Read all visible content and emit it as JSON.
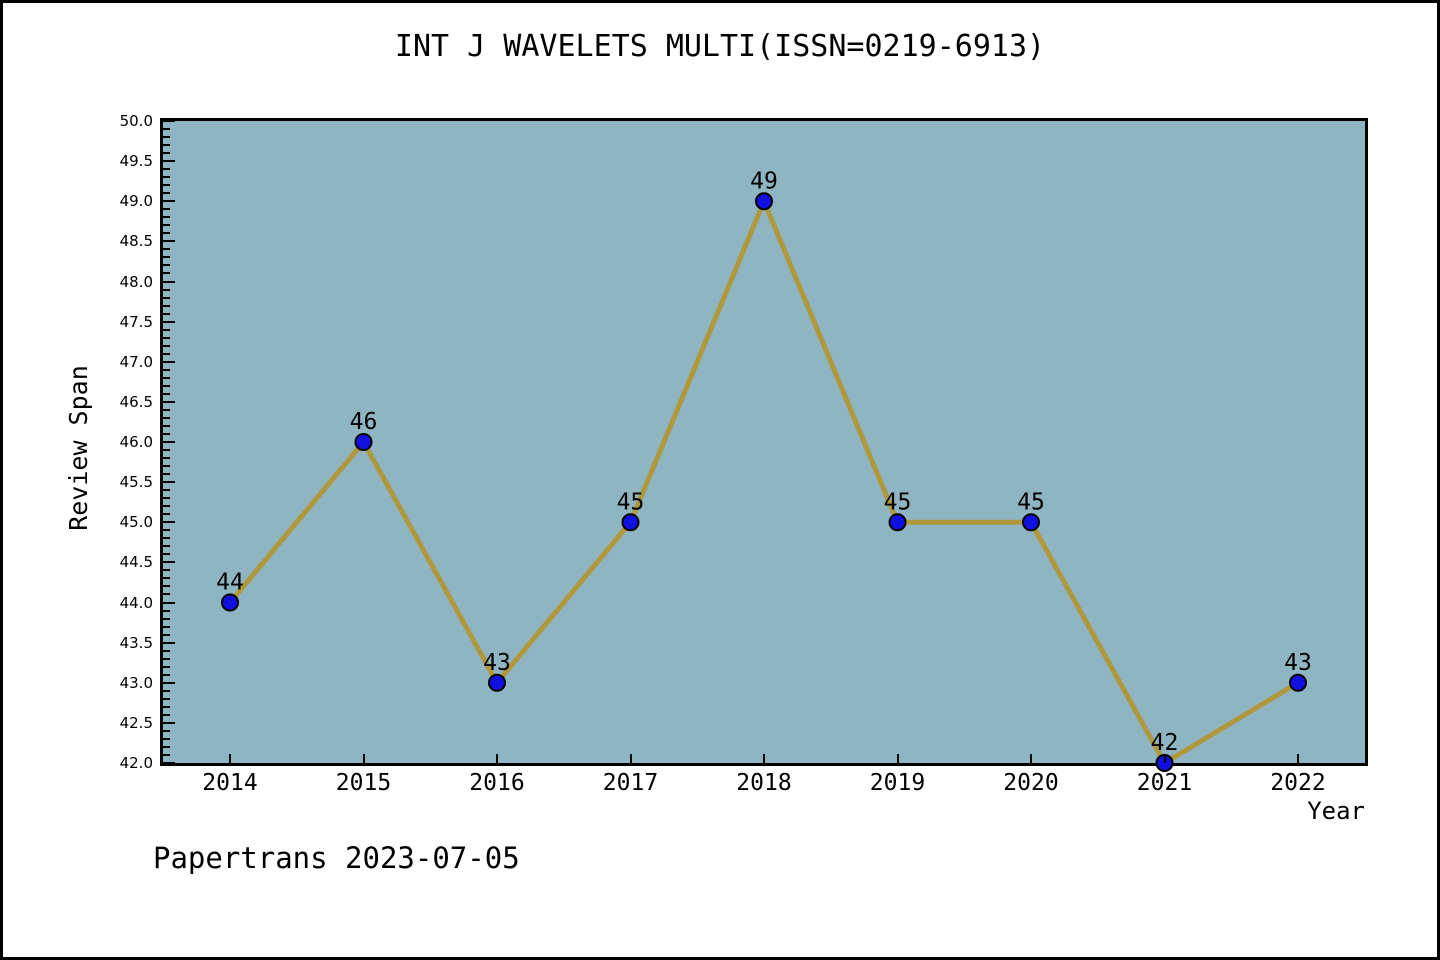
{
  "title": "INT J WAVELETS MULTI(ISSN=0219-6913)",
  "footer": "Papertrans 2023-07-05",
  "chart_data": {
    "type": "line",
    "title": "INT J WAVELETS MULTI(ISSN=0219-6913)",
    "xlabel": "Year",
    "ylabel": "Review Span",
    "categories": [
      "2014",
      "2015",
      "2016",
      "2017",
      "2018",
      "2019",
      "2020",
      "2021",
      "2022"
    ],
    "series": [
      {
        "name": "Review Span",
        "values": [
          44,
          46,
          43,
          45,
          49,
          45,
          45,
          42,
          43
        ]
      }
    ],
    "data_labels": [
      "44",
      "46",
      "43",
      "45",
      "49",
      "45",
      "45",
      "42",
      "43"
    ],
    "ylim": [
      42.0,
      50.0
    ],
    "ytick_step": 0.5,
    "y_minor_step": 0.1,
    "yticks": [
      "42.0",
      "42.5",
      "43.0",
      "43.5",
      "44.0",
      "44.5",
      "45.0",
      "45.5",
      "46.0",
      "46.5",
      "47.0",
      "47.5",
      "48.0",
      "48.5",
      "49.0",
      "49.5",
      "50.0"
    ],
    "grid": false,
    "legend": "none",
    "colors": {
      "plot_background": "#8FB4C2",
      "line": "#B0993C",
      "marker_fill": "#1010E0",
      "marker_edge": "#000000",
      "text": "#000000",
      "page_background": "#FFFFFF"
    }
  }
}
